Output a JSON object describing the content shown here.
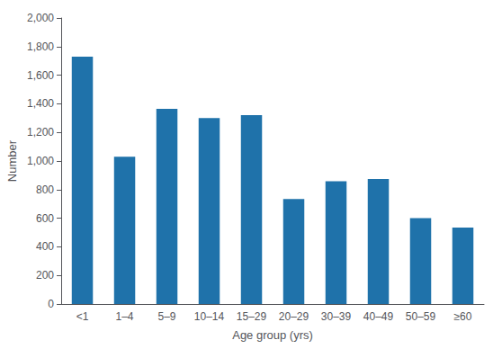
{
  "chart_data": {
    "type": "bar",
    "categories": [
      "<1",
      "1–4",
      "5–9",
      "10–14",
      "15–29",
      "20–29",
      "30–39",
      "40–49",
      "50–59",
      "≥60"
    ],
    "values": [
      1730,
      1030,
      1365,
      1300,
      1320,
      735,
      858,
      875,
      600,
      535
    ],
    "color": "#1f72aa",
    "xlabel": "Age group (yrs)",
    "ylabel": "Number",
    "ylim": [
      0,
      2000
    ],
    "yticks": [
      0,
      200,
      400,
      600,
      800,
      {
        "value": 1000,
        "label": "1,000"
      },
      {
        "value": 1200,
        "label": "1,200"
      },
      {
        "value": 1400,
        "label": "1,400"
      },
      {
        "value": 1600,
        "label": "1,600"
      },
      {
        "value": 1800,
        "label": "1,800"
      },
      {
        "value": 2000,
        "label": "2,000"
      }
    ],
    "grid": false
  }
}
